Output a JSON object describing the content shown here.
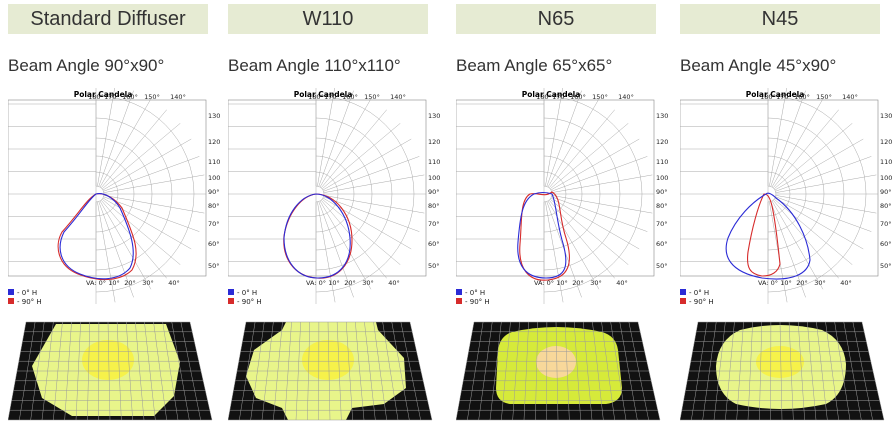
{
  "panels": [
    {
      "header": "Standard Diffuser",
      "beam_angle": "Beam Angle 90°x90°",
      "polar_title": "Polar Candela",
      "legend": [
        "- 0° H",
        "- 90° H"
      ],
      "top_labels": [
        "180°",
        "170°",
        "160°",
        "150°",
        "140°"
      ],
      "right_labels": [
        "130°",
        "120°",
        "110°",
        "100°",
        "90°",
        "80°",
        "70°",
        "60°",
        "50°"
      ],
      "bottom_labels": [
        "VA: 0°",
        "10°",
        "20°",
        "30°",
        "40°"
      ]
    },
    {
      "header": "W110",
      "beam_angle": "Beam Angle 110°x110°",
      "polar_title": "Polar Candela",
      "legend": [
        "- 0° H",
        "- 90° H"
      ],
      "top_labels": [
        "180°",
        "170°",
        "160°",
        "150°",
        "140°"
      ],
      "right_labels": [
        "130°",
        "120°",
        "110°",
        "100°",
        "90°",
        "80°",
        "70°",
        "60°",
        "50°"
      ],
      "bottom_labels": [
        "VA: 0°",
        "10°",
        "20°",
        "30°",
        "40°"
      ]
    },
    {
      "header": "N65",
      "beam_angle": "Beam Angle 65°x65°",
      "polar_title": "Polar Candela",
      "legend": [
        "- 0° H",
        "- 90° H"
      ],
      "top_labels": [
        "180°",
        "170°",
        "160°",
        "150°",
        "140°"
      ],
      "right_labels": [
        "130°",
        "120°",
        "110°",
        "100°",
        "90°",
        "80°",
        "70°",
        "60°",
        "50°"
      ],
      "bottom_labels": [
        "VA: 0°",
        "10°",
        "20°",
        "30°",
        "40°"
      ]
    },
    {
      "header": "N45",
      "beam_angle": "Beam Angle 45°x90°",
      "polar_title": "Polar Candela",
      "legend": [
        "- 0° H",
        "- 90° H"
      ],
      "top_labels": [
        "180°",
        "170°",
        "160°",
        "150°",
        "140°"
      ],
      "right_labels": [
        "130°",
        "120°",
        "110°",
        "100°",
        "90°",
        "80°",
        "70°",
        "60°",
        "50°"
      ],
      "bottom_labels": [
        "VA: 0°",
        "10°",
        "20°",
        "30°",
        "40°"
      ]
    }
  ],
  "colors": {
    "header_bg": "#e6ebd3",
    "series_0h": "#2b2bd6",
    "series_90h": "#d62b2b",
    "outer_spot": "#e8f58a",
    "inner_spot_yellow": "#f6f24a",
    "inner_spot_peach": "#f8d89a",
    "n65_outer": "#d6ea3a",
    "floor": "#111111"
  }
}
